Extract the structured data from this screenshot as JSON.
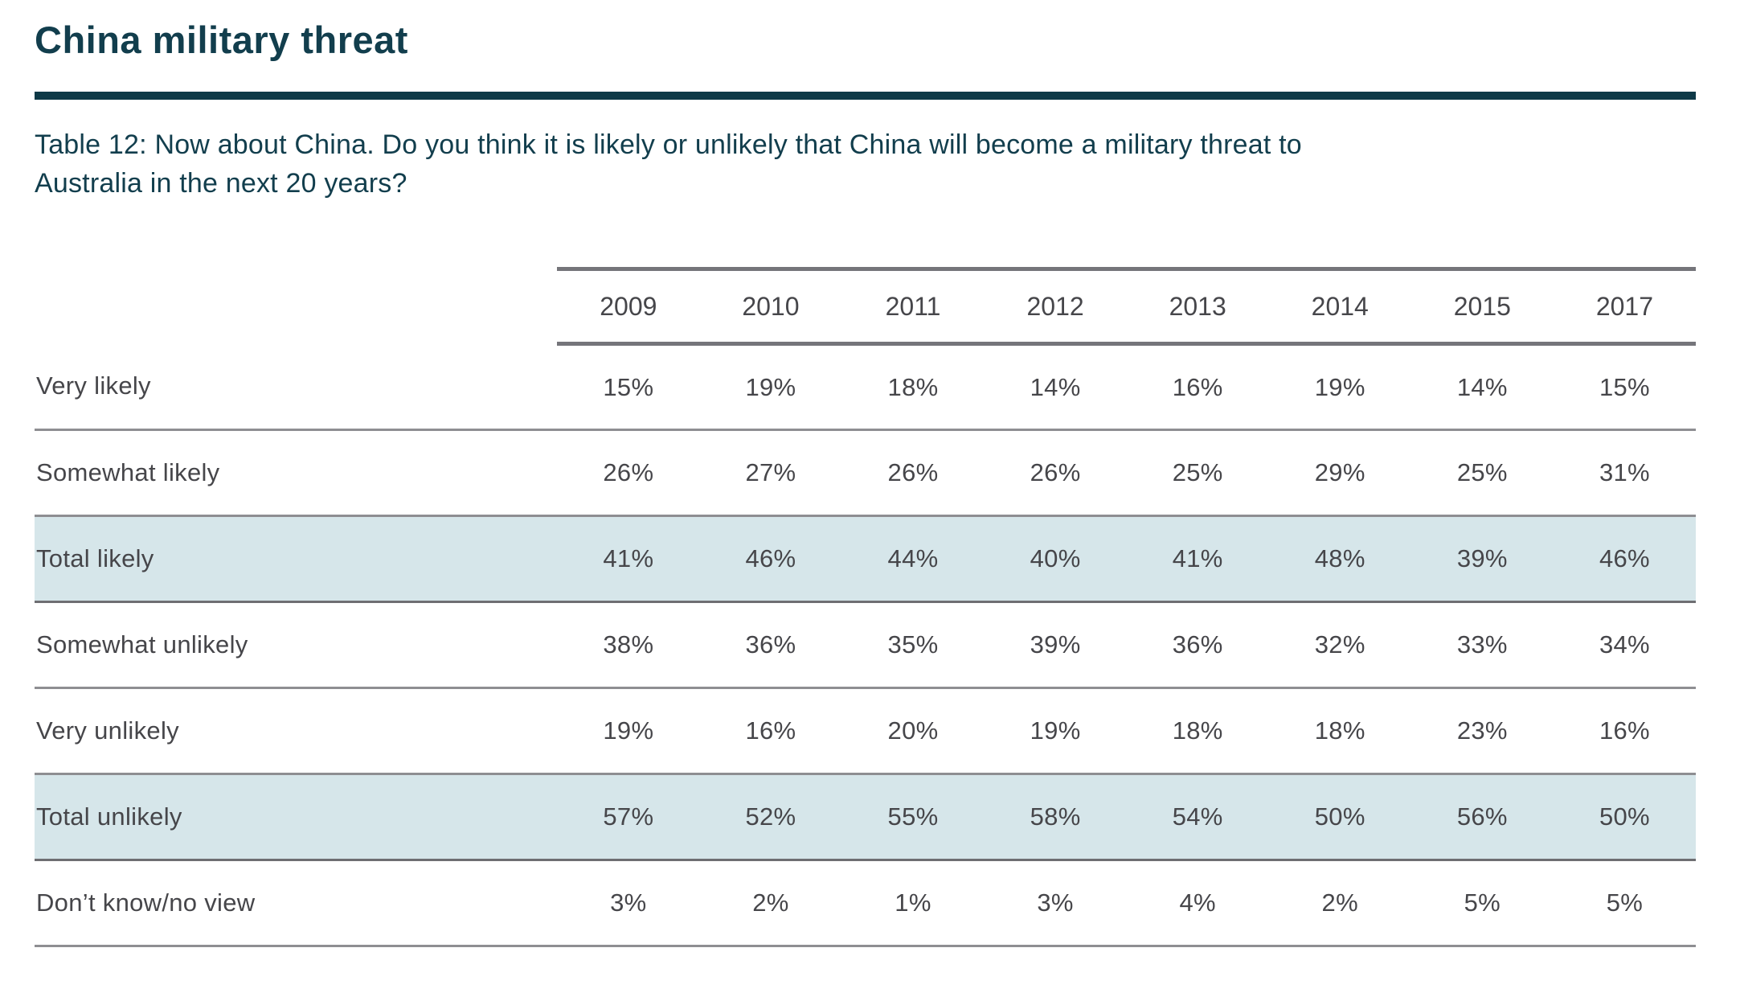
{
  "page": {
    "title": "China military threat",
    "question_line1": "Table 12: Now about China. Do you think it is likely or unlikely that China will become a military threat to",
    "question_line2": "Australia in the next 20 years?"
  },
  "chart_data": {
    "type": "table",
    "title": "China military threat",
    "subtitle": "Table 12: Now about China. Do you think it is likely or unlikely that China will become a military threat to Australia in the next 20 years?",
    "columns": [
      "2009",
      "2010",
      "2011",
      "2012",
      "2013",
      "2014",
      "2015",
      "2017"
    ],
    "rows": [
      {
        "label": "Very likely",
        "highlight": false,
        "values": [
          "15%",
          "19%",
          "18%",
          "14%",
          "16%",
          "19%",
          "14%",
          "15%"
        ]
      },
      {
        "label": "Somewhat likely",
        "highlight": false,
        "values": [
          "26%",
          "27%",
          "26%",
          "26%",
          "25%",
          "29%",
          "25%",
          "31%"
        ]
      },
      {
        "label": "Total likely",
        "highlight": true,
        "values": [
          "41%",
          "46%",
          "44%",
          "40%",
          "41%",
          "48%",
          "39%",
          "46%"
        ]
      },
      {
        "label": "Somewhat unlikely",
        "highlight": false,
        "values": [
          "38%",
          "36%",
          "35%",
          "39%",
          "36%",
          "32%",
          "33%",
          "34%"
        ]
      },
      {
        "label": "Very unlikely",
        "highlight": false,
        "values": [
          "19%",
          "16%",
          "20%",
          "19%",
          "18%",
          "18%",
          "23%",
          "16%"
        ]
      },
      {
        "label": "Total unlikely",
        "highlight": true,
        "values": [
          "57%",
          "52%",
          "55%",
          "58%",
          "54%",
          "50%",
          "56%",
          "50%"
        ]
      },
      {
        "label": "Don’t know/no view",
        "highlight": false,
        "values": [
          "3%",
          "2%",
          "1%",
          "3%",
          "4%",
          "2%",
          "5%",
          "5%"
        ]
      }
    ],
    "layout": {
      "legend": "none",
      "grid": "horizontal-rules",
      "highlight_row_background": "#d6e6ea"
    },
    "colors": {
      "title_text": "#123e4d",
      "title_rule": "#0e3947",
      "caption_text": "#123e4d",
      "cell_text": "#46464a",
      "header_border": "#75757a",
      "row_separator": "#8e8e92",
      "highlight_border": "#6e6e72",
      "highlight_background": "#d6e6ea",
      "page_background": "#ffffff"
    }
  }
}
